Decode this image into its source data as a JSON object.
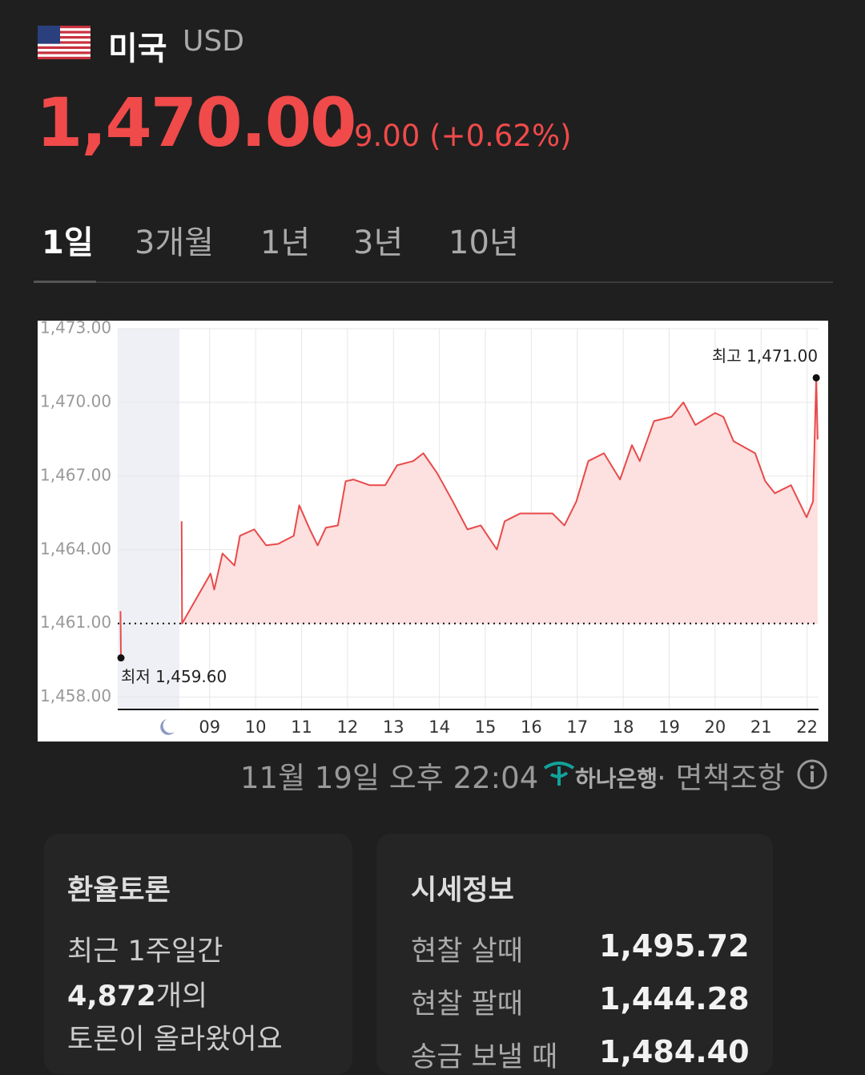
{
  "header": {
    "country": "미국",
    "currency": "USD"
  },
  "price": {
    "value": "1,470.00",
    "change": "9.00",
    "change_percent": "(+0.62%)"
  },
  "tabs": [
    "1일",
    "3개월",
    "1년",
    "3년",
    "10년"
  ],
  "chart_data": {
    "type": "line",
    "color": "#e84a4a",
    "fill_color": "#fde0e0",
    "x": [
      7.06,
      7.07,
      8.0,
      8.39,
      8.4,
      9.02,
      9.1,
      9.28,
      9.54,
      9.66,
      9.97,
      10.23,
      10.49,
      10.83,
      10.95,
      11.18,
      11.35,
      11.53,
      11.79,
      11.96,
      12.13,
      12.48,
      12.82,
      13.08,
      13.43,
      13.65,
      13.95,
      14.29,
      14.61,
      14.9,
      15.25,
      15.42,
      15.76,
      16.11,
      16.46,
      16.72,
      16.98,
      17.24,
      17.58,
      17.93,
      18.19,
      18.36,
      18.67,
      19.05,
      19.31,
      19.57,
      20.0,
      20.18,
      20.4,
      20.87,
      21.09,
      21.3,
      21.65,
      21.99,
      22.13,
      22.2,
      22.23
    ],
    "values": [
      1461.5,
      1459.6,
      null,
      1465.16,
      1461.0,
      1463.03,
      1462.38,
      1463.85,
      1463.36,
      1464.57,
      1464.83,
      1464.18,
      1464.24,
      1464.57,
      1465.81,
      1464.83,
      1464.18,
      1464.9,
      1464.99,
      1466.79,
      1466.86,
      1466.63,
      1466.63,
      1467.44,
      1467.61,
      1467.93,
      1467.12,
      1465.97,
      1464.83,
      1464.99,
      1464.01,
      1465.16,
      1465.48,
      1465.48,
      1465.48,
      1464.99,
      1465.97,
      1467.61,
      1467.93,
      1466.86,
      1468.26,
      1467.61,
      1469.24,
      1469.41,
      1470.0,
      1469.08,
      1469.57,
      1469.41,
      1468.42,
      1467.93,
      1466.79,
      1466.3,
      1466.63,
      1465.32,
      1465.97,
      1471.0,
      1468.49
    ],
    "reference": 1461,
    "xlim": [
      7,
      22.25
    ],
    "xticks": [
      {
        "value": 9,
        "label": "09"
      },
      10,
      11,
      12,
      13,
      14,
      15,
      16,
      17,
      18,
      19,
      20,
      21,
      22
    ],
    "ylim": [
      1457.5,
      1473
    ],
    "yticks": [
      {
        "value": 1458,
        "label": "1,458.00"
      },
      {
        "value": 1461,
        "label": "1,461.00"
      },
      {
        "value": 1464,
        "label": "1,464.00"
      },
      {
        "value": 1467,
        "label": "1,467.00"
      },
      {
        "value": 1470,
        "label": "1,470.00"
      },
      {
        "value": 1473,
        "label": "1,473.00"
      }
    ],
    "grid": true,
    "annotations": [
      {
        "label": "최저 1,459.60",
        "x": 7.07,
        "y": 1459.6
      },
      {
        "label": "최고 1,471.00",
        "x": 22.2,
        "y": 1471.0
      }
    ]
  },
  "footer": {
    "timestamp": "11월 19일 오후 22:04",
    "bank": "하나은행",
    "disclaimer": "· 면책조항"
  },
  "discussion": {
    "title": "환율토론",
    "line1": "최근 1주일간",
    "count": "4,872",
    "count_suffix": "개의",
    "line3": "토론이 올라왔어요"
  },
  "market_info": {
    "title": "시세정보",
    "rows": [
      [
        "현찰 살때",
        "1,495.72"
      ],
      [
        "현찰 팔때",
        "1,444.28"
      ],
      [
        "송금 보낼 때",
        "1,484.40"
      ]
    ]
  }
}
